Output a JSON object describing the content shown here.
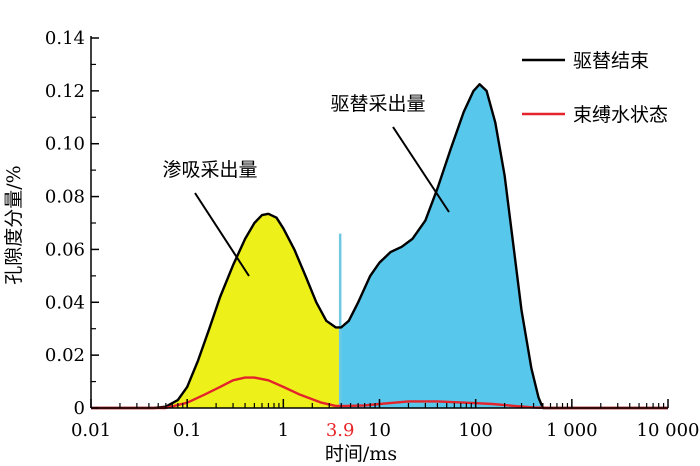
{
  "chart_data": {
    "type": "area",
    "title": "",
    "xlabel": "时间/ms",
    "ylabel": "孔隙度分量/%",
    "x_scale": "log",
    "xlim": [
      0.01,
      10000
    ],
    "ylim": [
      0,
      0.14
    ],
    "x_ticks": [
      {
        "value": 0.01,
        "label": "0.01"
      },
      {
        "value": 0.1,
        "label": "0.1"
      },
      {
        "value": 1,
        "label": "1"
      },
      {
        "value": 10,
        "label": "10"
      },
      {
        "value": 100,
        "label": "100"
      },
      {
        "value": 1000,
        "label": "1 000"
      },
      {
        "value": 10000,
        "label": "10 000"
      }
    ],
    "y_ticks": [
      {
        "value": 0,
        "label": "0"
      },
      {
        "value": 0.02,
        "label": "0.02"
      },
      {
        "value": 0.04,
        "label": "0.04"
      },
      {
        "value": 0.06,
        "label": "0.06"
      },
      {
        "value": 0.08,
        "label": "0.08"
      },
      {
        "value": 0.1,
        "label": "0.10"
      },
      {
        "value": 0.12,
        "label": "0.12"
      },
      {
        "value": 0.14,
        "label": "0.14"
      }
    ],
    "cutoff": {
      "value": 3.9,
      "label": "3.9",
      "color": "#e8262a",
      "line_color": "#6fc8e3",
      "line_top": 0.066
    },
    "series": [
      {
        "name": "驱替结束",
        "color": "#000000",
        "points": [
          [
            0.01,
            0
          ],
          [
            0.045,
            0
          ],
          [
            0.06,
            0.0005
          ],
          [
            0.08,
            0.003
          ],
          [
            0.1,
            0.008
          ],
          [
            0.13,
            0.018
          ],
          [
            0.17,
            0.03
          ],
          [
            0.22,
            0.042
          ],
          [
            0.3,
            0.054
          ],
          [
            0.4,
            0.064
          ],
          [
            0.5,
            0.07
          ],
          [
            0.6,
            0.073
          ],
          [
            0.7,
            0.0735
          ],
          [
            0.85,
            0.072
          ],
          [
            1.0,
            0.068
          ],
          [
            1.3,
            0.06
          ],
          [
            1.7,
            0.05
          ],
          [
            2.2,
            0.04
          ],
          [
            2.8,
            0.033
          ],
          [
            3.5,
            0.0305
          ],
          [
            4.0,
            0.0305
          ],
          [
            4.8,
            0.033
          ],
          [
            6,
            0.04
          ],
          [
            8,
            0.05
          ],
          [
            10,
            0.055
          ],
          [
            13,
            0.059
          ],
          [
            17,
            0.061
          ],
          [
            22,
            0.064
          ],
          [
            30,
            0.071
          ],
          [
            40,
            0.083
          ],
          [
            55,
            0.098
          ],
          [
            75,
            0.112
          ],
          [
            95,
            0.12
          ],
          [
            110,
            0.1225
          ],
          [
            130,
            0.12
          ],
          [
            160,
            0.108
          ],
          [
            200,
            0.088
          ],
          [
            250,
            0.06
          ],
          [
            300,
            0.037
          ],
          [
            380,
            0.015
          ],
          [
            450,
            0.004
          ],
          [
            500,
            0
          ],
          [
            10000,
            0
          ]
        ]
      },
      {
        "name": "束缚水状态",
        "color": "#e3242b",
        "points": [
          [
            0.01,
            0
          ],
          [
            0.06,
            0
          ],
          [
            0.1,
            0.002
          ],
          [
            0.15,
            0.005
          ],
          [
            0.22,
            0.008
          ],
          [
            0.3,
            0.0105
          ],
          [
            0.4,
            0.0115
          ],
          [
            0.5,
            0.0115
          ],
          [
            0.7,
            0.0105
          ],
          [
            1.0,
            0.008
          ],
          [
            1.5,
            0.005
          ],
          [
            2.5,
            0.002
          ],
          [
            3.5,
            0.0008
          ],
          [
            4.5,
            0.0008
          ],
          [
            7,
            0.001
          ],
          [
            10,
            0.0015
          ],
          [
            20,
            0.0025
          ],
          [
            40,
            0.0025
          ],
          [
            80,
            0.002
          ],
          [
            150,
            0.0015
          ],
          [
            250,
            0.0008
          ],
          [
            400,
            0.0002
          ],
          [
            600,
            0
          ],
          [
            10000,
            0
          ]
        ]
      }
    ],
    "regions": [
      {
        "label": "渗吸采出量",
        "from": 0.01,
        "to": 3.9,
        "color": "#eef01a"
      },
      {
        "label": "驱替采出量",
        "from": 3.9,
        "to": 10000,
        "color": "#58c7ec"
      }
    ],
    "legend_position": "top-right",
    "grid": false
  }
}
